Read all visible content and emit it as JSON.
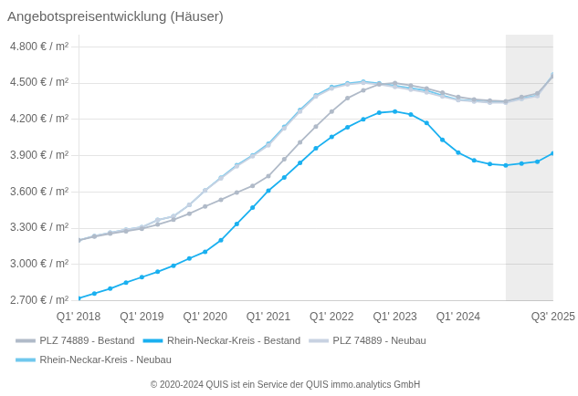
{
  "chart_data": {
    "type": "line",
    "title": "Angebotspreisentwicklung (Häuser)",
    "footer": "© 2020-2024 QUIS ist ein Service der QUIS immo.analytics GmbH",
    "x": [
      0,
      1,
      2,
      3,
      4,
      5,
      6,
      7,
      8,
      9,
      10,
      11,
      12,
      13,
      14,
      15,
      16,
      17,
      18,
      19,
      20,
      21,
      22,
      23,
      24,
      25,
      26,
      27,
      28,
      29,
      30
    ],
    "xlim": [
      0,
      30
    ],
    "xticks": [
      {
        "value": 0,
        "label": "Q1' 2018"
      },
      {
        "value": 4,
        "label": "Q1' 2019"
      },
      {
        "value": 8,
        "label": "Q1' 2020"
      },
      {
        "value": 12,
        "label": "Q1' 2021"
      },
      {
        "value": 16,
        "label": "Q1' 2022"
      },
      {
        "value": 20,
        "label": "Q1' 2023"
      },
      {
        "value": 24,
        "label": "Q1' 2024"
      },
      {
        "value": 30,
        "label": "Q3' 2025"
      }
    ],
    "ylim": [
      2700,
      4900
    ],
    "yticks": [
      {
        "value": 2700,
        "label": "2.700 € / m²"
      },
      {
        "value": 3000,
        "label": "3.000 € / m²"
      },
      {
        "value": 3300,
        "label": "3.300 € / m²"
      },
      {
        "value": 3600,
        "label": "3.600 € / m²"
      },
      {
        "value": 3900,
        "label": "3.900 € / m²"
      },
      {
        "value": 4200,
        "label": "4.200 € / m²"
      },
      {
        "value": 4500,
        "label": "4.500 € / m²"
      },
      {
        "value": 4800,
        "label": "4.800 € / m²"
      }
    ],
    "shaded_x": [
      27,
      30
    ],
    "grid": "y",
    "legend": "bottom",
    "marker": "circle",
    "series": [
      {
        "name": "PLZ 74889 - Bestand",
        "color": "#b0bac8",
        "values": [
          3200,
          3230,
          3255,
          3275,
          3295,
          3330,
          3370,
          3420,
          3480,
          3535,
          3595,
          3650,
          3730,
          3870,
          4010,
          4140,
          4265,
          4375,
          4440,
          4490,
          4500,
          4480,
          4455,
          4420,
          4385,
          4365,
          4355,
          4350,
          4385,
          4415,
          4555
        ]
      },
      {
        "name": "Rhein-Neckar-Kreis - Bestand",
        "color": "#1ab0f0",
        "values": [
          2720,
          2760,
          2800,
          2850,
          2895,
          2940,
          2990,
          3050,
          3105,
          3200,
          3335,
          3470,
          3610,
          3720,
          3840,
          3960,
          4055,
          4135,
          4200,
          4255,
          4265,
          4240,
          4170,
          4030,
          3925,
          3860,
          3830,
          3820,
          3835,
          3850,
          3920
        ]
      },
      {
        "name": "PLZ 74889 - Neubau",
        "color": "#c8d2e2",
        "values": [
          3200,
          3235,
          3262,
          3288,
          3308,
          3368,
          3398,
          3492,
          3612,
          3712,
          3812,
          3895,
          3985,
          4125,
          4265,
          4388,
          4455,
          4488,
          4502,
          4488,
          4468,
          4445,
          4422,
          4388,
          4358,
          4348,
          4338,
          4338,
          4368,
          4392,
          4565
        ]
      },
      {
        "name": "Rhein-Neckar-Kreis - Neubau",
        "color": "#70c8ee",
        "values": [
          3200,
          3235,
          3262,
          3288,
          3308,
          3368,
          3398,
          3492,
          3612,
          3718,
          3822,
          3902,
          3998,
          4138,
          4278,
          4398,
          4468,
          4498,
          4512,
          4498,
          4478,
          4458,
          4438,
          4398,
          4362,
          4352,
          4342,
          4342,
          4372,
          4398,
          4570
        ]
      }
    ]
  }
}
